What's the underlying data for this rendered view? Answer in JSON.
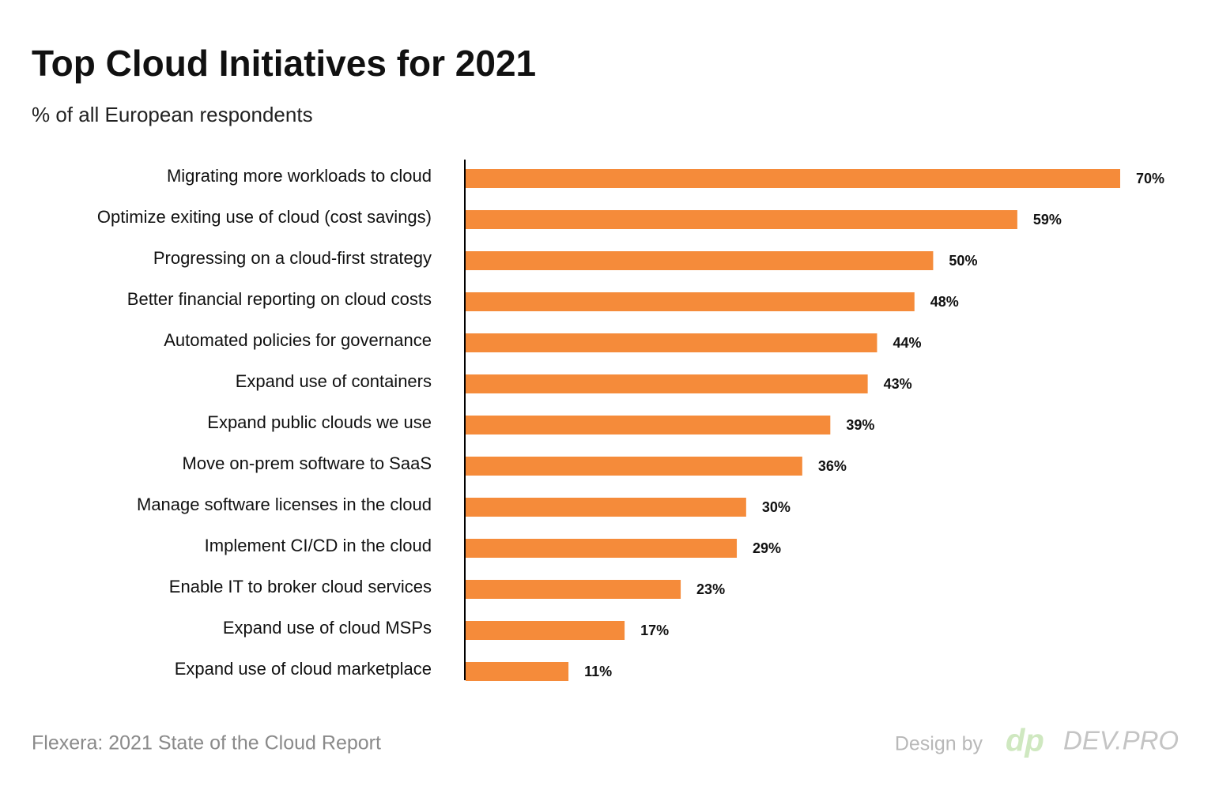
{
  "chart_data": {
    "type": "bar",
    "orientation": "horizontal",
    "title": "Top Cloud Initiatives for 2021",
    "subtitle": "% of all European respondents",
    "categories": [
      "Migrating more workloads to cloud",
      "Optimize exiting use of cloud (cost savings)",
      "Progressing on a cloud-first strategy",
      "Better financial reporting on cloud costs",
      "Automated policies for governance",
      "Expand use of containers",
      "Expand public clouds we use",
      "Move on-prem software to SaaS",
      "Manage software licenses in the cloud",
      "Implement CI/CD in the cloud",
      "Enable IT to broker cloud services",
      "Expand use of cloud MSPs",
      "Expand use of cloud marketplace"
    ],
    "values": [
      70,
      59,
      50,
      48,
      44,
      43,
      39,
      36,
      30,
      29,
      23,
      17,
      11
    ],
    "value_labels": [
      "70%",
      "59%",
      "50%",
      "48%",
      "44%",
      "43%",
      "39%",
      "36%",
      "30%",
      "29%",
      "23%",
      "17%",
      "11%"
    ],
    "color": "#f58b3a",
    "source": "Flexera: 2021 State of the Cloud Report",
    "credit": "Design by",
    "logo_mark": "dp",
    "logo_text": "DEV.PRO"
  }
}
